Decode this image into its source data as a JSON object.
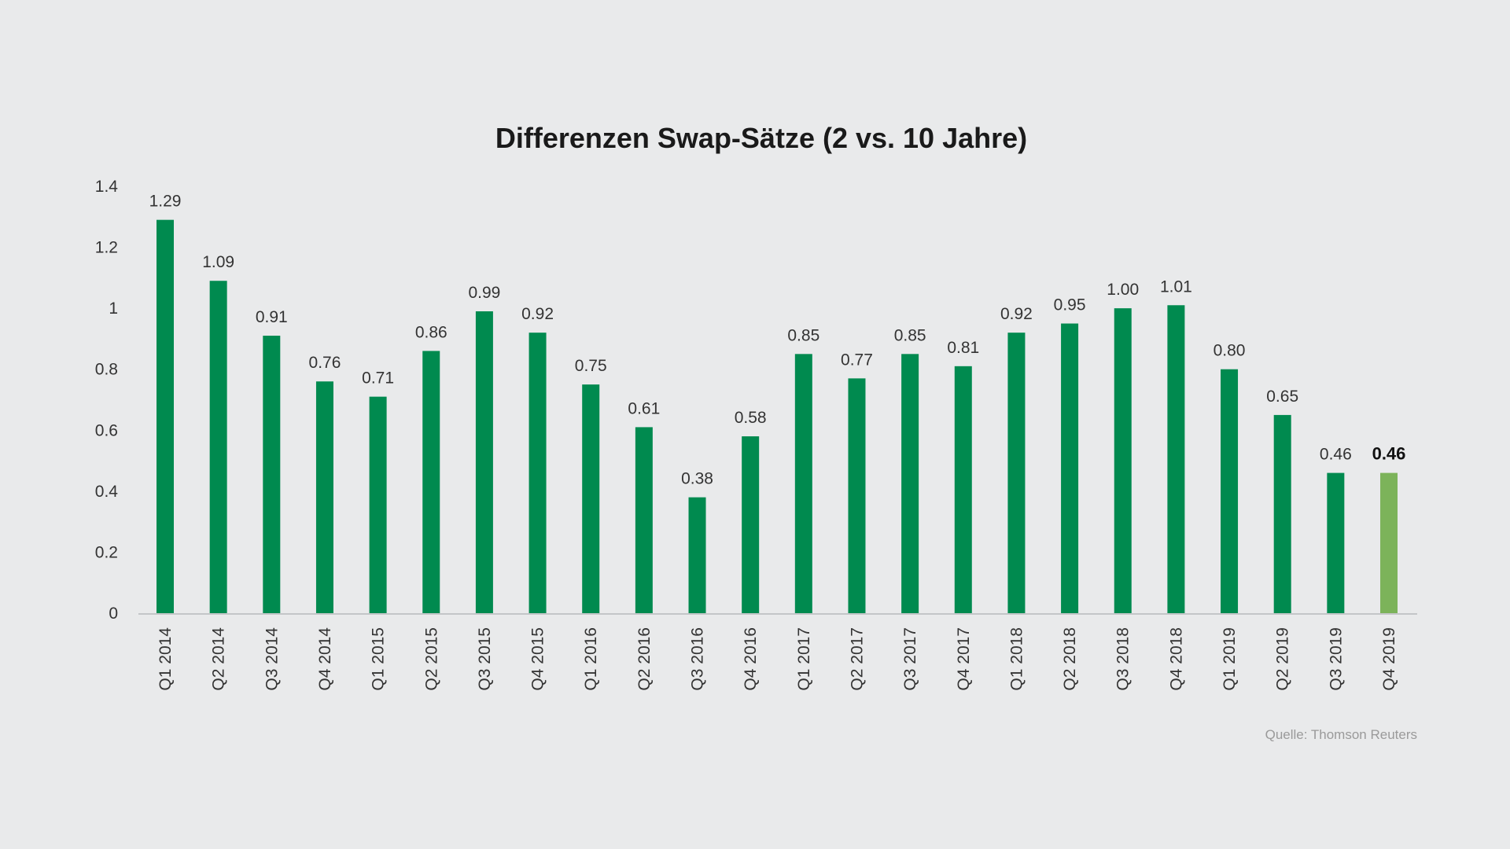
{
  "chart_data": {
    "type": "bar",
    "title": "Differenzen Swap-Sätze (2 vs. 10 Jahre)",
    "xlabel": "",
    "ylabel": "",
    "ylim": [
      0,
      1.4
    ],
    "yticks": [
      "0",
      "0.2",
      "0.4",
      "0.6",
      "0.8",
      "1",
      "1.2",
      "1.4"
    ],
    "grid": false,
    "categories": [
      "Q1 2014",
      "Q2 2014",
      "Q3 2014",
      "Q4 2014",
      "Q1 2015",
      "Q2 2015",
      "Q3 2015",
      "Q4 2015",
      "Q1 2016",
      "Q2 2016",
      "Q3 2016",
      "Q4 2016",
      "Q1 2017",
      "Q2 2017",
      "Q3 2017",
      "Q4 2017",
      "Q1 2018",
      "Q2 2018",
      "Q3 2018",
      "Q4 2018",
      "Q1 2019",
      "Q2 2019",
      "Q3 2019",
      "Q4 2019"
    ],
    "values": [
      1.29,
      1.09,
      0.91,
      0.76,
      0.71,
      0.86,
      0.99,
      0.92,
      0.75,
      0.61,
      0.38,
      0.58,
      0.85,
      0.77,
      0.85,
      0.81,
      0.92,
      0.95,
      1.0,
      1.01,
      0.8,
      0.65,
      0.46,
      0.46
    ],
    "data_labels": [
      "1.29",
      "1.09",
      "0.91",
      "0.76",
      "0.71",
      "0.86",
      "0.99",
      "0.92",
      "0.75",
      "0.61",
      "0.38",
      "0.58",
      "0.85",
      "0.77",
      "0.85",
      "0.81",
      "0.92",
      "0.95",
      "1.00",
      "1.01",
      "0.80",
      "0.65",
      "0.46",
      "0.46"
    ],
    "highlight_index": 23,
    "source": "Quelle: Thomson Reuters"
  },
  "colors": {
    "bar": "#008a4f",
    "bar_highlight": "#7cb35a",
    "axis": "#c4c6c8",
    "background": "#e9eaeb"
  }
}
